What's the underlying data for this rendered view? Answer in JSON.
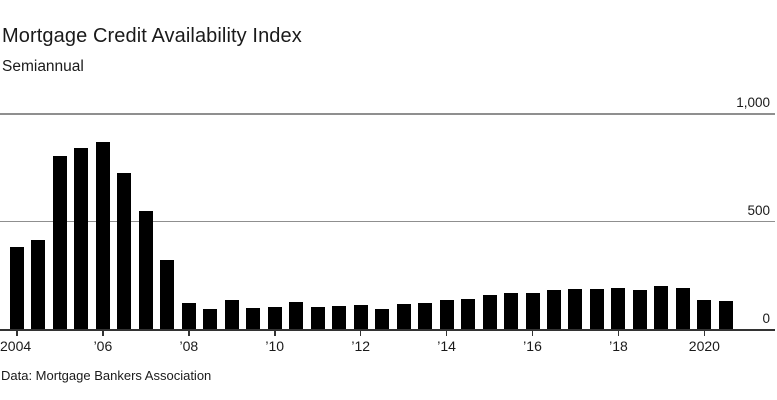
{
  "header": {
    "title": "Mortgage Credit Availability Index",
    "subtitle": "Semiannual"
  },
  "footer": {
    "source": "Data: Mortgage Bankers Association"
  },
  "chart_data": {
    "type": "bar",
    "title": "Mortgage Credit Availability Index",
    "subtitle": "Semiannual",
    "source": "Data: Mortgage Bankers Association",
    "frequency": "semiannual",
    "x": [
      "2004 H1",
      "2004 H2",
      "2005 H1",
      "2005 H2",
      "2006 H1",
      "2006 H2",
      "2007 H1",
      "2007 H2",
      "2008 H1",
      "2008 H2",
      "2009 H1",
      "2009 H2",
      "2010 H1",
      "2010 H2",
      "2011 H1",
      "2011 H2",
      "2012 H1",
      "2012 H2",
      "2013 H1",
      "2013 H2",
      "2014 H1",
      "2014 H2",
      "2015 H1",
      "2015 H2",
      "2016 H1",
      "2016 H2",
      "2017 H1",
      "2017 H2",
      "2018 H1",
      "2018 H2",
      "2019 H1",
      "2019 H2",
      "2020 H1",
      "2020 H2"
    ],
    "values": [
      380,
      415,
      805,
      840,
      866,
      722,
      548,
      318,
      122,
      91,
      134,
      98,
      104,
      126,
      100,
      106,
      110,
      92,
      117,
      120,
      133,
      140,
      156,
      168,
      169,
      180,
      187,
      184,
      192,
      181,
      199,
      192,
      134,
      129
    ],
    "x_ticks": [
      {
        "i": 0,
        "label": "2004"
      },
      {
        "i": 4,
        "label": "’06"
      },
      {
        "i": 8,
        "label": "’08"
      },
      {
        "i": 12,
        "label": "’10"
      },
      {
        "i": 16,
        "label": "’12"
      },
      {
        "i": 20,
        "label": "’14"
      },
      {
        "i": 24,
        "label": "’16"
      },
      {
        "i": 28,
        "label": "’18"
      },
      {
        "i": 32,
        "label": "2020"
      }
    ],
    "y_ticks": [
      0,
      500,
      1000
    ],
    "y_tick_labels": [
      "0",
      "500",
      "1,000"
    ],
    "ylim": [
      0,
      1000
    ],
    "xlabel": "",
    "ylabel": "",
    "legend": "none",
    "grid": "horizontal gridlines at 500 and 1,000; dark baseline at 0; y labels right-aligned above lines",
    "colors": {
      "bar": "#000000",
      "gridline": "#8f8f8f",
      "axis": "#333333",
      "text": "#1a1a1a",
      "background": "#ffffff"
    }
  }
}
